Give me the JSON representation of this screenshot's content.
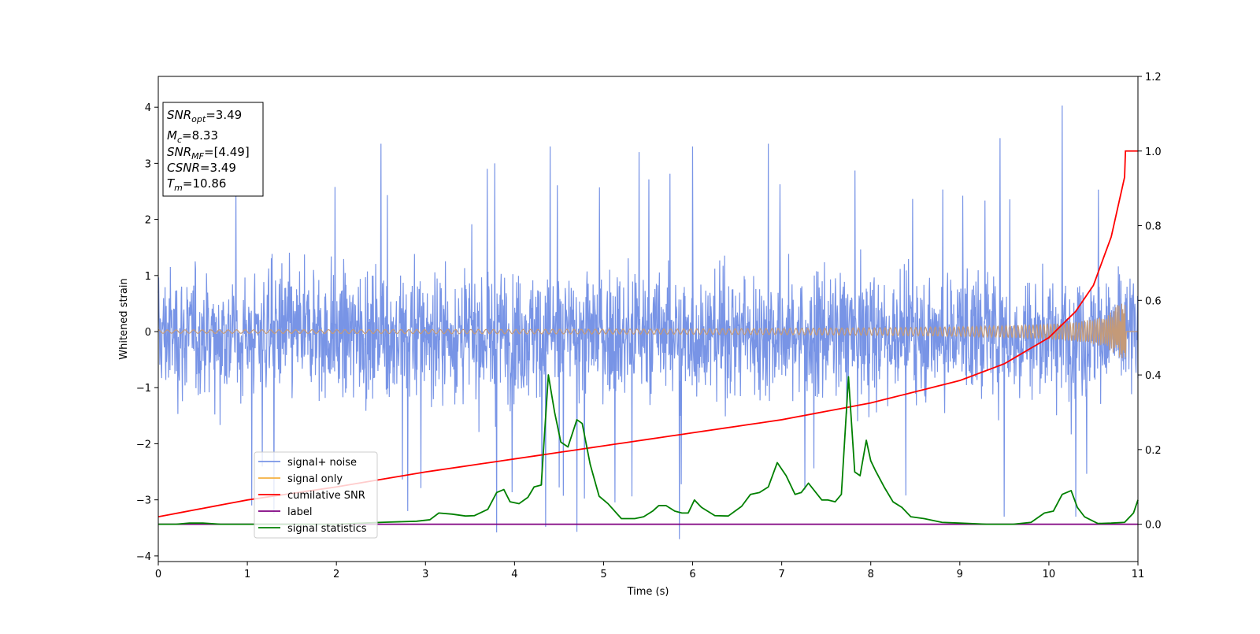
{
  "chart_data": {
    "type": "line",
    "xlabel": "Time (s)",
    "ylabel": "Whitened strain",
    "xlim": [
      0,
      11
    ],
    "ylim": [
      -4.1,
      4.55
    ],
    "y2lim": [
      -0.1,
      1.2
    ],
    "grid": false,
    "x_ticks": [
      "0",
      "1",
      "2",
      "3",
      "4",
      "5",
      "6",
      "7",
      "8",
      "9",
      "10",
      "11"
    ],
    "y_ticks": [
      "−4",
      "−3",
      "−2",
      "−1",
      "0",
      "1",
      "2",
      "3",
      "4"
    ],
    "y2_ticks": [
      "0.0",
      "0.2",
      "0.4",
      "0.6",
      "0.8",
      "1.0",
      "1.2"
    ],
    "legend_position": "lower-left",
    "colors": {
      "signal_noise": "#7894e6",
      "signal_only": "#f5b041",
      "signal_only_overlap": "#c49a78",
      "cumulative_snr": "#ff0000",
      "label": "#800080",
      "signal_statistics": "#008000"
    },
    "info_box": [
      {
        "base": "SNR",
        "sub": "opt",
        "rest": "=3.49"
      },
      {
        "base": "M",
        "sub": "c",
        "rest": "=8.33"
      },
      {
        "base": "SNR",
        "sub": "MF",
        "rest": "=[4.49]"
      },
      {
        "base": "CSNR",
        "sub": "",
        "rest": "=3.49"
      },
      {
        "base": "T",
        "sub": "m",
        "rest": "=10.86"
      }
    ],
    "series": [
      {
        "name": "signal+ noise",
        "axis": "left",
        "envelope": {
          "typical_upper": 2.0,
          "typical_lower": -2.1,
          "max": 4.03,
          "min": -3.7
        },
        "peaks": [
          {
            "x": 2.5,
            "y": 3.35
          },
          {
            "x": 3.78,
            "y": 3.0
          },
          {
            "x": 4.4,
            "y": 3.3
          },
          {
            "x": 5.4,
            "y": 3.2
          },
          {
            "x": 6.0,
            "y": 3.3
          },
          {
            "x": 6.85,
            "y": 3.35
          },
          {
            "x": 9.45,
            "y": 3.45
          },
          {
            "x": 10.15,
            "y": 4.03
          },
          {
            "x": 1.05,
            "y": -3.1
          },
          {
            "x": 1.3,
            "y": -3.25
          },
          {
            "x": 2.8,
            "y": -3.2
          },
          {
            "x": 3.8,
            "y": -3.58
          },
          {
            "x": 4.35,
            "y": -3.48
          },
          {
            "x": 4.7,
            "y": -3.57
          },
          {
            "x": 5.85,
            "y": -3.7
          },
          {
            "x": 9.5,
            "y": -3.3
          },
          {
            "x": 10.3,
            "y": -3.3
          }
        ]
      },
      {
        "name": "signal only",
        "axis": "left",
        "chirp": {
          "merger_time": 10.86,
          "base_amplitude": 0.03,
          "peak_amplitude": 0.5
        }
      },
      {
        "name": "cumilative SNR",
        "axis": "right",
        "x": [
          0,
          1,
          2,
          3,
          4,
          5,
          6,
          7,
          8,
          9,
          9.5,
          10,
          10.3,
          10.5,
          10.7,
          10.85,
          10.86,
          11
        ],
        "y": [
          0.02,
          0.065,
          0.1,
          0.14,
          0.175,
          0.21,
          0.245,
          0.28,
          0.325,
          0.385,
          0.43,
          0.5,
          0.57,
          0.64,
          0.77,
          0.93,
          1.0,
          1.0
        ]
      },
      {
        "name": "label",
        "axis": "right",
        "x": [
          0,
          11
        ],
        "y": [
          0,
          0
        ]
      },
      {
        "name": "signal statistics",
        "axis": "right",
        "x": [
          0,
          0.2,
          0.35,
          0.5,
          0.7,
          1.0,
          1.5,
          2.0,
          2.5,
          2.9,
          3.05,
          3.15,
          3.3,
          3.45,
          3.55,
          3.7,
          3.8,
          3.88,
          3.95,
          4.05,
          4.15,
          4.22,
          4.3,
          4.38,
          4.45,
          4.52,
          4.6,
          4.7,
          4.76,
          4.85,
          4.95,
          5.05,
          5.2,
          5.35,
          5.45,
          5.55,
          5.62,
          5.7,
          5.8,
          5.88,
          5.95,
          6.02,
          6.1,
          6.25,
          6.4,
          6.55,
          6.65,
          6.75,
          6.85,
          6.95,
          7.05,
          7.15,
          7.22,
          7.3,
          7.45,
          7.52,
          7.6,
          7.67,
          7.75,
          7.82,
          7.88,
          7.95,
          8.0,
          8.05,
          8.15,
          8.25,
          8.35,
          8.45,
          8.6,
          8.8,
          9.0,
          9.3,
          9.6,
          9.8,
          9.95,
          10.05,
          10.15,
          10.25,
          10.32,
          10.4,
          10.55,
          10.7,
          10.85,
          10.95,
          11.0
        ],
        "y": [
          0.0,
          0.0,
          0.003,
          0.003,
          0.0,
          0.0,
          0.0,
          0.0,
          0.005,
          0.008,
          0.012,
          0.03,
          0.027,
          0.022,
          0.023,
          0.04,
          0.085,
          0.093,
          0.06,
          0.055,
          0.072,
          0.1,
          0.105,
          0.4,
          0.3,
          0.22,
          0.207,
          0.28,
          0.27,
          0.16,
          0.075,
          0.055,
          0.015,
          0.015,
          0.02,
          0.035,
          0.05,
          0.05,
          0.035,
          0.03,
          0.03,
          0.065,
          0.045,
          0.023,
          0.022,
          0.048,
          0.08,
          0.085,
          0.1,
          0.165,
          0.13,
          0.08,
          0.085,
          0.11,
          0.065,
          0.065,
          0.06,
          0.08,
          0.395,
          0.14,
          0.13,
          0.225,
          0.17,
          0.145,
          0.1,
          0.06,
          0.045,
          0.02,
          0.015,
          0.005,
          0.003,
          0.0,
          0.0,
          0.005,
          0.03,
          0.035,
          0.08,
          0.09,
          0.045,
          0.02,
          0.002,
          0.003,
          0.005,
          0.03,
          0.065
        ]
      }
    ]
  }
}
